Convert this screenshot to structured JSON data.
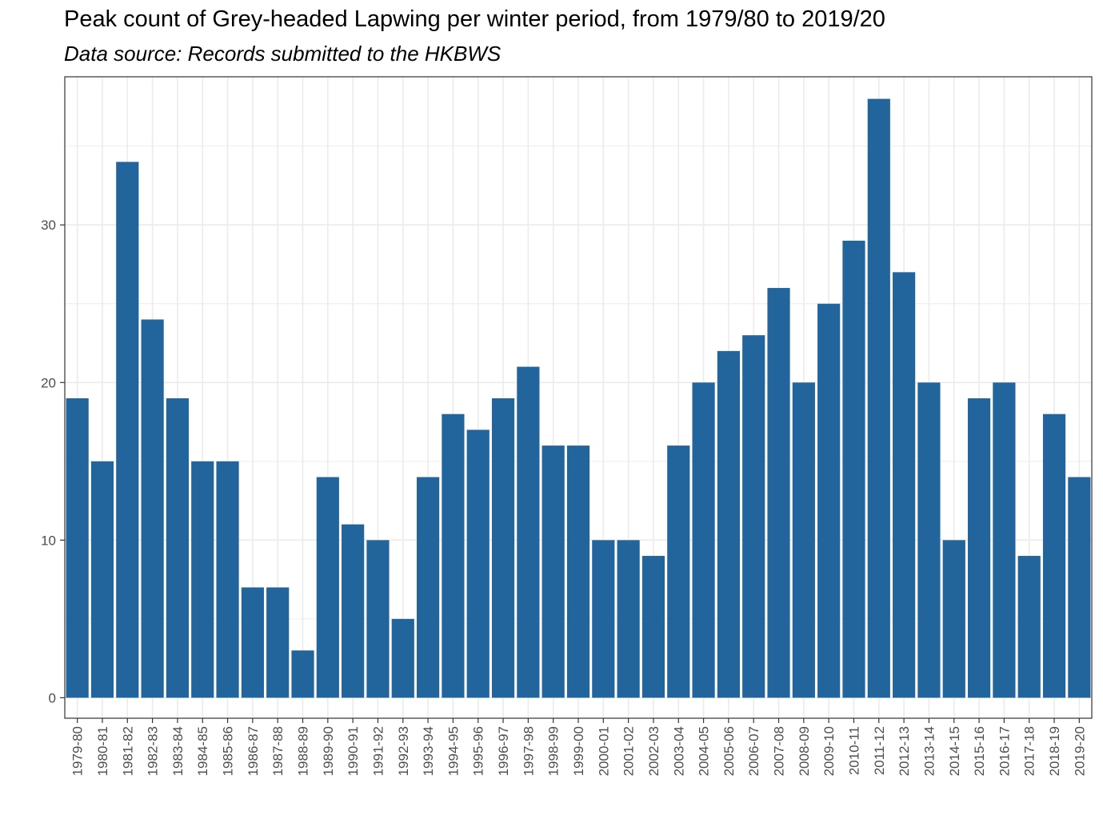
{
  "chart_data": {
    "type": "bar",
    "title": "Peak count of Grey-headed Lapwing per winter period, from 1979/80 to 2019/20",
    "subtitle": "Data source: Records submitted to the HKBWS",
    "xlabel": "",
    "ylabel": "",
    "ylim": [
      -1.3,
      39.4
    ],
    "yticks": [
      0,
      10,
      20,
      30
    ],
    "grid": true,
    "bar_color": "#22649C",
    "categories": [
      "1979-80",
      "1980-81",
      "1981-82",
      "1982-83",
      "1983-84",
      "1984-85",
      "1985-86",
      "1986-87",
      "1987-88",
      "1988-89",
      "1989-90",
      "1990-91",
      "1991-92",
      "1992-93",
      "1993-94",
      "1994-95",
      "1995-96",
      "1996-97",
      "1997-98",
      "1998-99",
      "1999-00",
      "2000-01",
      "2001-02",
      "2002-03",
      "2003-04",
      "2004-05",
      "2005-06",
      "2006-07",
      "2007-08",
      "2008-09",
      "2009-10",
      "2010-11",
      "2011-12",
      "2012-13",
      "2013-14",
      "2014-15",
      "2015-16",
      "2016-17",
      "2017-18",
      "2018-19",
      "2019-20"
    ],
    "values": [
      19,
      15,
      34,
      24,
      19,
      15,
      15,
      7,
      7,
      3,
      14,
      11,
      10,
      5,
      14,
      18,
      17,
      19,
      21,
      16,
      16,
      10,
      10,
      9,
      16,
      20,
      22,
      23,
      26,
      20,
      25,
      29,
      38,
      27,
      20,
      10,
      19,
      20,
      9,
      18,
      14
    ]
  }
}
